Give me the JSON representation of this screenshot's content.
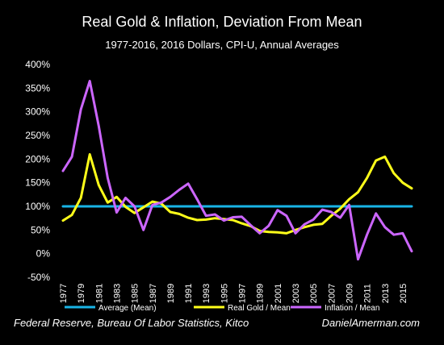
{
  "chart_data": {
    "type": "line",
    "title": "Real Gold & Inflation, Deviation From Mean",
    "subtitle": "1977-2016, 2016 Dollars, CPI-U, Annual Averages",
    "ylim": [
      -50,
      400
    ],
    "y_ticks": [
      "400%",
      "350%",
      "300%",
      "250%",
      "200%",
      "150%",
      "100%",
      "50%",
      "0%",
      "-50%"
    ],
    "x": [
      1977,
      1978,
      1979,
      1980,
      1981,
      1982,
      1983,
      1984,
      1985,
      1986,
      1987,
      1988,
      1989,
      1990,
      1991,
      1992,
      1993,
      1994,
      1995,
      1996,
      1997,
      1998,
      1999,
      2000,
      2001,
      2002,
      2003,
      2004,
      2005,
      2006,
      2007,
      2008,
      2009,
      2010,
      2011,
      2012,
      2013,
      2014,
      2015,
      2016
    ],
    "x_ticks": [
      "1977",
      "1979",
      "1981",
      "1983",
      "1985",
      "1987",
      "1989",
      "1991",
      "1993",
      "1995",
      "1997",
      "1999",
      "2001",
      "2003",
      "2005",
      "2007",
      "2009",
      "2011",
      "2013",
      "2015"
    ],
    "series": [
      {
        "name": "Average (Mean)",
        "color": "#19b4e6",
        "values": [
          100,
          100,
          100,
          100,
          100,
          100,
          100,
          100,
          100,
          100,
          100,
          100,
          100,
          100,
          100,
          100,
          100,
          100,
          100,
          100,
          100,
          100,
          100,
          100,
          100,
          100,
          100,
          100,
          100,
          100,
          100,
          100,
          100,
          100,
          100,
          100,
          100,
          100,
          100,
          100
        ]
      },
      {
        "name": "Real Gold / Mean",
        "color": "#ffff1a",
        "values": [
          70,
          82,
          118,
          210,
          145,
          108,
          120,
          99,
          86,
          98,
          110,
          106,
          88,
          84,
          76,
          71,
          72,
          75,
          73,
          71,
          64,
          58,
          48,
          46,
          45,
          43,
          50,
          56,
          61,
          63,
          80,
          95,
          115,
          130,
          160,
          197,
          205,
          170,
          150,
          138
        ]
      },
      {
        "name": "Inflation / Mean",
        "color": "#cc66ff",
        "values": [
          175,
          205,
          305,
          365,
          270,
          160,
          87,
          118,
          100,
          50,
          103,
          108,
          120,
          135,
          148,
          115,
          80,
          83,
          70,
          77,
          78,
          60,
          43,
          59,
          92,
          80,
          43,
          62,
          72,
          93,
          88,
          76,
          103,
          -12,
          40,
          85,
          56,
          40,
          43,
          5
        ]
      }
    ],
    "legend": [
      "Average (Mean)",
      "Real Gold / Mean",
      "Inflation / Mean"
    ],
    "legend_position": "bottom"
  },
  "footer": {
    "source": "Federal Reserve, Bureau Of Labor Statistics, Kitco",
    "site": "DanielAmerman.com"
  }
}
